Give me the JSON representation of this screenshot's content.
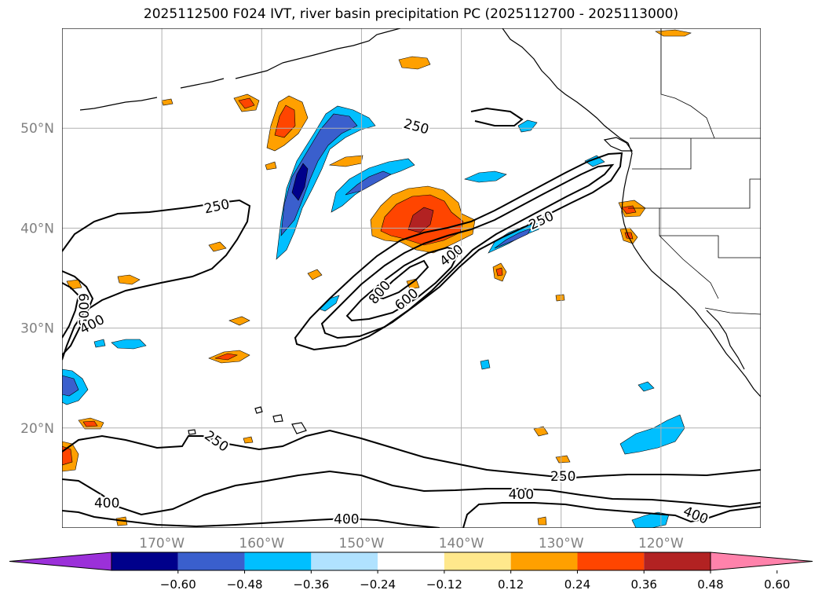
{
  "chart_data": {
    "type": "heatmap",
    "title": "2025112500 F024 IVT, river basin precipitation PC (2025112700 - 2025113000)",
    "map": {
      "lon_range": [
        -180,
        -110
      ],
      "lat_range": [
        10,
        60
      ],
      "grid": true,
      "lon_ticks": [
        {
          "value": -170,
          "label": "170°W"
        },
        {
          "value": -160,
          "label": "160°W"
        },
        {
          "value": -150,
          "label": "150°W"
        },
        {
          "value": -140,
          "label": "140°W"
        },
        {
          "value": -130,
          "label": "130°W"
        },
        {
          "value": -120,
          "label": "120°W"
        }
      ],
      "lat_ticks": [
        {
          "value": 20,
          "label": "20°N"
        },
        {
          "value": 30,
          "label": "30°N"
        },
        {
          "value": 40,
          "label": "40°N"
        },
        {
          "value": 50,
          "label": "50°N"
        }
      ]
    },
    "colorbar": {
      "orientation": "horizontal",
      "extend": "both",
      "ticks": [
        "−0.60",
        "−0.48",
        "−0.36",
        "−0.24",
        "−0.12",
        "0.12",
        "0.24",
        "0.36",
        "0.48",
        "0.60"
      ],
      "colors": [
        "#9b30d9",
        "#00008b",
        "#3a5fcd",
        "#00bfff",
        "#b0e2ff",
        "#ffffff",
        "#ffe88c",
        "#ffa000",
        "#ff4500",
        "#b22222",
        "#ff82ab"
      ]
    },
    "ivt_contour_levels": [
      250,
      400,
      600,
      800
    ],
    "ivt_contour_labels": [
      {
        "text": "250",
        "lon": -144.5,
        "lat": 50.2,
        "rot": 15
      },
      {
        "text": "250",
        "lon": -164.5,
        "lat": 42.2,
        "rot": -12
      },
      {
        "text": "250",
        "lon": -132,
        "lat": 40.8,
        "rot": -25
      },
      {
        "text": "400",
        "lon": -141,
        "lat": 37.3,
        "rot": -38
      },
      {
        "text": "600",
        "lon": -145.5,
        "lat": 32.9,
        "rot": -40
      },
      {
        "text": "800",
        "lon": -148.2,
        "lat": 33.6,
        "rot": -50
      },
      {
        "text": "6009",
        "lon": -177.8,
        "lat": 31.8,
        "rot": -90
      },
      {
        "text": "400",
        "lon": -177,
        "lat": 30.4,
        "rot": -28
      },
      {
        "text": "250",
        "lon": -164.5,
        "lat": 18.7,
        "rot": 35
      },
      {
        "text": "250",
        "lon": -129.8,
        "lat": 15.2,
        "rot": 0
      },
      {
        "text": "400",
        "lon": -134,
        "lat": 13.4,
        "rot": 0
      },
      {
        "text": "400",
        "lon": -175.5,
        "lat": 12.5,
        "rot": 0
      },
      {
        "text": "400",
        "lon": -151.5,
        "lat": 10.9,
        "rot": 0
      },
      {
        "text": "400",
        "lon": -116.5,
        "lat": 11.3,
        "rot": 22
      }
    ]
  }
}
